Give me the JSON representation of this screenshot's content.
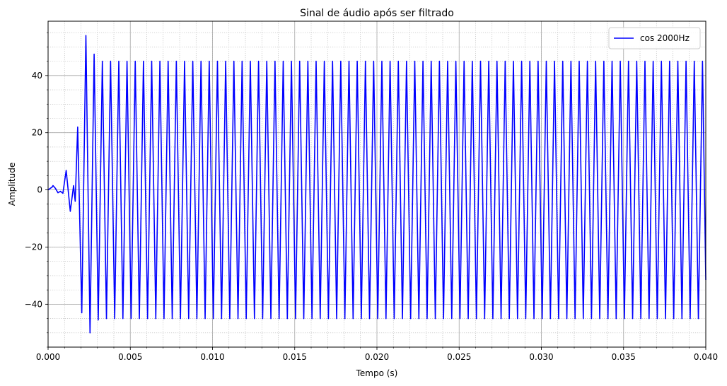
{
  "chart_data": {
    "type": "line",
    "title": "Sinal de áudio após ser filtrado",
    "xlabel": "Tempo (s)",
    "ylabel": "Amplitude",
    "xlim": [
      0.0,
      0.04
    ],
    "ylim": [
      -55,
      59
    ],
    "xticks": [
      0.0,
      0.005,
      0.01,
      0.015,
      0.02,
      0.025,
      0.03,
      0.035,
      0.04
    ],
    "xtick_labels": [
      "0.000",
      "0.005",
      "0.010",
      "0.015",
      "0.020",
      "0.025",
      "0.030",
      "0.035",
      "0.040"
    ],
    "yticks": [
      -40,
      -20,
      0,
      20,
      40
    ],
    "ytick_labels": [
      "−40",
      "−20",
      "0",
      "20",
      "40"
    ],
    "grid": true,
    "minor_grid": true,
    "legend_position": "top-right",
    "series": [
      {
        "name": "cos 2000Hz",
        "color": "#0000ff",
        "frequency_hz": 2000,
        "steady_amplitude": 45,
        "transient": [
          {
            "x": 0.0,
            "y": 0.0
          },
          {
            "x": 0.00025,
            "y": 1.0
          },
          {
            "x": 0.0003,
            "y": 1.5
          },
          {
            "x": 0.00045,
            "y": 0.5
          },
          {
            "x": 0.0006,
            "y": -1.0
          },
          {
            "x": 0.00075,
            "y": -0.5
          },
          {
            "x": 0.0009,
            "y": -1.2
          },
          {
            "x": 0.0011,
            "y": 6.8
          },
          {
            "x": 0.00135,
            "y": -7.5
          },
          {
            "x": 0.00155,
            "y": 1.5
          },
          {
            "x": 0.00165,
            "y": -4.0
          },
          {
            "x": 0.0018,
            "y": 22.0
          },
          {
            "x": 0.00205,
            "y": -43.0
          },
          {
            "x": 0.0023,
            "y": 54.0
          },
          {
            "x": 0.00255,
            "y": -50.0
          },
          {
            "x": 0.0028,
            "y": 47.5
          },
          {
            "x": 0.00305,
            "y": -45.5
          },
          {
            "x": 0.0033,
            "y": 45.0
          }
        ],
        "end_value": -31.5
      }
    ]
  }
}
